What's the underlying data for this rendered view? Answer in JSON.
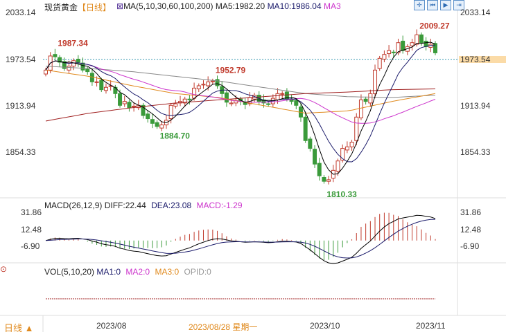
{
  "header": {
    "title": "现货黄金",
    "period": "【日线】",
    "ma_label": "MA(5,10,30,60,100,200)",
    "ma5": "MA5:1982.20",
    "ma10": "MA10:1986.04",
    "ma3": "MA3"
  },
  "toolbar": [
    "crosshair-icon",
    "step-back-icon",
    "play-icon",
    "exit-icon"
  ],
  "price_axis": {
    "ticks": [
      "2033.14",
      "1973.54",
      "1913.94",
      "1854.33"
    ],
    "current": "1973.54"
  },
  "macd": {
    "label": "MACD(26,12,9)",
    "diff": "DIFF:22.44",
    "dea": "DEA:23.08",
    "macd": "MACD:-1.29",
    "ticks": [
      "31.86",
      "12.48",
      "-6.90"
    ]
  },
  "vol": {
    "label": "VOL(5,10,20)",
    "ma1": "MA1:0",
    "ma2": "MA2:0",
    "ma3": "MA3:0",
    "opid": "OPID:0"
  },
  "footer": {
    "period": "日线",
    "dates": [
      "2023/08",
      "2023/08/28 星期一",
      "2023/10",
      "2023/11"
    ]
  },
  "colors": {
    "up": "#c0392b",
    "down": "#3a9a3a",
    "ma5": "#000000",
    "ma10": "#1a1a6a",
    "ma30": "#cc33cc",
    "ma60": "#e08a1e",
    "ma100": "#a02020",
    "ma200": "#888888"
  },
  "chart_data": {
    "type": "candlestick",
    "ylim": [
      1795,
      2040
    ],
    "annotations": [
      {
        "text": "1987.34",
        "index": 2,
        "value": 1987.34,
        "color": "#c0392b"
      },
      {
        "text": "1952.79",
        "index": 36,
        "value": 1952.79,
        "color": "#c0392b"
      },
      {
        "text": "1884.70",
        "index": 24,
        "value": 1884.7,
        "color": "#3a9a3a"
      },
      {
        "text": "1810.33",
        "index": 60,
        "value": 1810.33,
        "color": "#3a9a3a"
      },
      {
        "text": "2009.27",
        "index": 80,
        "value": 2009.27,
        "color": "#c0392b"
      }
    ],
    "closes": [
      1960,
      1978,
      1977,
      1970,
      1962,
      1965,
      1972,
      1970,
      1960,
      1958,
      1945,
      1945,
      1935,
      1938,
      1940,
      1930,
      1915,
      1920,
      1912,
      1914,
      1915,
      1902,
      1898,
      1892,
      1888,
      1890,
      1896,
      1915,
      1917,
      1920,
      1923,
      1922,
      1937,
      1940,
      1942,
      1945,
      1946,
      1940,
      1930,
      1919,
      1918,
      1921,
      1920,
      1916,
      1925,
      1928,
      1920,
      1918,
      1916,
      1924,
      1930,
      1930,
      1923,
      1920,
      1915,
      1900,
      1870,
      1860,
      1840,
      1825,
      1818,
      1820,
      1832,
      1844,
      1860,
      1862,
      1868,
      1900,
      1922,
      1920,
      1930,
      1960,
      1975,
      1980,
      1985,
      1982,
      1995,
      1985,
      1990,
      1995,
      2005,
      1995,
      1990,
      1993,
      1982
    ],
    "ma60": [
      1960,
      1952,
      1940,
      1930,
      1925,
      1915,
      1905,
      1908,
      1920,
      1930
    ],
    "ma100": [
      1895,
      1905,
      1912,
      1918,
      1922,
      1926,
      1930,
      1932,
      1935,
      1936
    ],
    "ma200": [
      1965,
      1962,
      1958,
      1952,
      1946,
      1938,
      1930,
      1926,
      1925,
      1928
    ]
  }
}
